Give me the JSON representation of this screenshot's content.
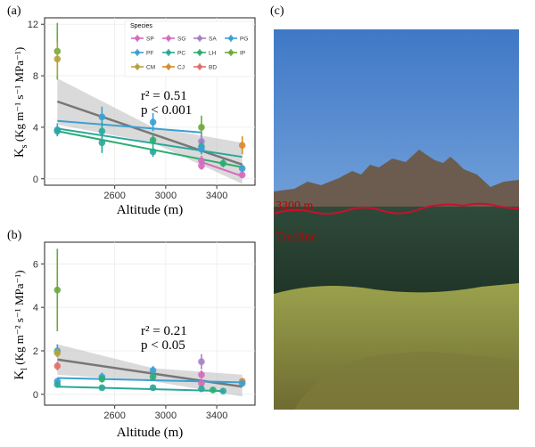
{
  "panel_a": {
    "label": "(a)",
    "ylabel": "K",
    "ylabel_sub": "s",
    "ylabel_units": " (Kg m⁻¹ s⁻¹ MPa⁻¹)",
    "xlabel": "Altitude (m)",
    "stat1": "r² = 0.51",
    "stat2": "p < 0.001"
  },
  "panel_b": {
    "label": "(b)",
    "ylabel": "K",
    "ylabel_sub": "l",
    "ylabel_units": " (Kg m⁻² s⁻¹ MPa⁻¹)",
    "xlabel": "Altitude (m)",
    "stat1": "r² = 0.21",
    "stat2": "p < 0.05"
  },
  "panel_c": {
    "label": "(c)",
    "altitude_label": "3300 m",
    "treeline_label": "Treeline",
    "treeline_color": "#c8102e"
  },
  "legend": {
    "title": "Species",
    "items": [
      {
        "name": "SP",
        "color": "#d46bbd"
      },
      {
        "name": "SG",
        "color": "#d46bbd"
      },
      {
        "name": "SA",
        "color": "#a77fc7"
      },
      {
        "name": "PG",
        "color": "#3aa0d4"
      },
      {
        "name": "PF",
        "color": "#3aa0d4"
      },
      {
        "name": "PC",
        "color": "#2aa89a"
      },
      {
        "name": "LH",
        "color": "#2bad6f"
      },
      {
        "name": "IP",
        "color": "#6aaa3a"
      },
      {
        "name": "CM",
        "color": "#b5a337"
      },
      {
        "name": "CJ",
        "color": "#d98b2a"
      },
      {
        "name": "BD",
        "color": "#e26d6d"
      }
    ]
  },
  "chart_data": [
    {
      "type": "scatter",
      "panel": "a",
      "xlim": [
        2050,
        3700
      ],
      "ylim": [
        -0.5,
        12.5
      ],
      "x_ticks": [
        2600,
        3000,
        3400
      ],
      "y_ticks": [
        0,
        4,
        8,
        12
      ],
      "points": [
        {
          "x": 2150,
          "y": 9.9,
          "err": 2.2,
          "color": "#6aaa3a"
        },
        {
          "x": 2150,
          "y": 9.3,
          "err": 1.3,
          "color": "#b5a337"
        },
        {
          "x": 2150,
          "y": 3.8,
          "err": 0.5,
          "color": "#3aa0d4"
        },
        {
          "x": 2150,
          "y": 3.7,
          "err": 0.4,
          "color": "#2aa89a"
        },
        {
          "x": 2500,
          "y": 4.8,
          "err": 0.8,
          "color": "#3aa0d4"
        },
        {
          "x": 2500,
          "y": 3.7,
          "err": 0.7,
          "color": "#2aa89a"
        },
        {
          "x": 2500,
          "y": 2.8,
          "err": 0.8,
          "color": "#2aa89a"
        },
        {
          "x": 2900,
          "y": 4.4,
          "err": 0.7,
          "color": "#3aa0d4"
        },
        {
          "x": 2900,
          "y": 3.0,
          "err": 0.5,
          "color": "#2bad6f"
        },
        {
          "x": 2900,
          "y": 2.1,
          "err": 0.4,
          "color": "#2aa89a"
        },
        {
          "x": 3280,
          "y": 4.0,
          "err": 0.9,
          "color": "#6aaa3a"
        },
        {
          "x": 3280,
          "y": 2.9,
          "err": 0.6,
          "color": "#a77fc7"
        },
        {
          "x": 3280,
          "y": 2.5,
          "err": 0.5,
          "color": "#2aa89a"
        },
        {
          "x": 3280,
          "y": 2.3,
          "err": 0.4,
          "color": "#3aa0d4"
        },
        {
          "x": 3280,
          "y": 1.4,
          "err": 0.4,
          "color": "#d46bbd"
        },
        {
          "x": 3280,
          "y": 1.0,
          "err": 0.3,
          "color": "#d46bbd"
        },
        {
          "x": 3450,
          "y": 1.2,
          "err": 0.3,
          "color": "#2bad6f"
        },
        {
          "x": 3600,
          "y": 2.6,
          "err": 0.7,
          "color": "#d98b2a"
        },
        {
          "x": 3600,
          "y": 0.8,
          "err": 0.3,
          "color": "#3aa0d4"
        },
        {
          "x": 3600,
          "y": 0.3,
          "err": 0.2,
          "color": "#d46bbd"
        }
      ],
      "fit_lines": [
        {
          "x": [
            2150,
            3600
          ],
          "y": [
            6.0,
            1.1
          ],
          "color": "#777777",
          "width": 2.5
        },
        {
          "x": [
            2150,
            3280
          ],
          "y": [
            4.5,
            3.6
          ],
          "color": "#3aa0d4",
          "width": 2
        },
        {
          "x": [
            2150,
            3600
          ],
          "y": [
            3.9,
            1.7
          ],
          "color": "#2aa89a",
          "width": 2
        },
        {
          "x": [
            2150,
            3600
          ],
          "y": [
            3.7,
            0.9
          ],
          "color": "#2bad6f",
          "width": 2
        },
        {
          "x": [
            3280,
            3600
          ],
          "y": [
            1.3,
            0.2
          ],
          "color": "#d46bbd",
          "width": 2
        }
      ],
      "ci_band": {
        "x": [
          2150,
          2900,
          3600
        ],
        "upper": [
          7.8,
          4.0,
          2.8
        ],
        "lower": [
          4.2,
          2.8,
          -0.4
        ],
        "color": "#bbbbbb"
      }
    },
    {
      "type": "scatter",
      "panel": "b",
      "xlim": [
        2050,
        3700
      ],
      "ylim": [
        -0.5,
        7.0
      ],
      "x_ticks": [
        2600,
        3000,
        3400
      ],
      "y_ticks": [
        0,
        2,
        4,
        6
      ],
      "points": [
        {
          "x": 2150,
          "y": 4.8,
          "err": 1.9,
          "color": "#6aaa3a"
        },
        {
          "x": 2150,
          "y": 2.0,
          "err": 0.3,
          "color": "#3aa0d4"
        },
        {
          "x": 2150,
          "y": 1.9,
          "err": 0.2,
          "color": "#b5a337"
        },
        {
          "x": 2150,
          "y": 1.3,
          "err": 0.2,
          "color": "#e26d6d"
        },
        {
          "x": 2150,
          "y": 0.6,
          "err": 0.15,
          "color": "#3aa0d4"
        },
        {
          "x": 2150,
          "y": 0.45,
          "err": 0.1,
          "color": "#2aa89a"
        },
        {
          "x": 2500,
          "y": 0.8,
          "err": 0.2,
          "color": "#3aa0d4"
        },
        {
          "x": 2500,
          "y": 0.7,
          "err": 0.15,
          "color": "#2bad6f"
        },
        {
          "x": 2500,
          "y": 0.3,
          "err": 0.1,
          "color": "#2aa89a"
        },
        {
          "x": 2900,
          "y": 1.1,
          "err": 0.2,
          "color": "#3aa0d4"
        },
        {
          "x": 2900,
          "y": 0.8,
          "err": 0.15,
          "color": "#2bad6f"
        },
        {
          "x": 2900,
          "y": 0.3,
          "err": 0.1,
          "color": "#2aa89a"
        },
        {
          "x": 3280,
          "y": 1.5,
          "err": 0.35,
          "color": "#a77fc7"
        },
        {
          "x": 3280,
          "y": 0.9,
          "err": 0.2,
          "color": "#d46bbd"
        },
        {
          "x": 3280,
          "y": 0.5,
          "err": 0.1,
          "color": "#d46bbd"
        },
        {
          "x": 3280,
          "y": 0.25,
          "err": 0.1,
          "color": "#2aa89a"
        },
        {
          "x": 3370,
          "y": 0.2,
          "err": 0.08,
          "color": "#2bad6f"
        },
        {
          "x": 3450,
          "y": 0.15,
          "err": 0.08,
          "color": "#2aa89a"
        },
        {
          "x": 3600,
          "y": 0.6,
          "err": 0.15,
          "color": "#d98b2a"
        },
        {
          "x": 3600,
          "y": 0.5,
          "err": 0.1,
          "color": "#3aa0d4"
        }
      ],
      "fit_lines": [
        {
          "x": [
            2150,
            3600
          ],
          "y": [
            1.6,
            0.35
          ],
          "color": "#777777",
          "width": 2.5
        },
        {
          "x": [
            2150,
            3600
          ],
          "y": [
            0.75,
            0.55
          ],
          "color": "#3aa0d4",
          "width": 2
        },
        {
          "x": [
            2150,
            3450
          ],
          "y": [
            0.35,
            0.15
          ],
          "color": "#2aa89a",
          "width": 2
        }
      ],
      "ci_band": {
        "x": [
          2150,
          2900,
          3600
        ],
        "upper": [
          2.3,
          1.2,
          0.9
        ],
        "lower": [
          0.9,
          0.6,
          -0.1
        ],
        "color": "#bbbbbb"
      }
    }
  ]
}
